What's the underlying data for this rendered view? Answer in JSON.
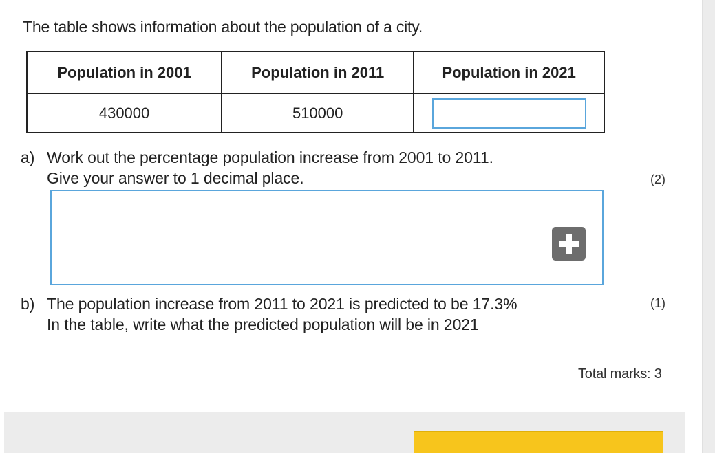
{
  "intro_text": "The table shows information about the population of a city.",
  "table": {
    "headers": [
      "Population in 2001",
      "Population in 2011",
      "Population in 2021"
    ],
    "values": [
      "430000",
      "510000"
    ],
    "input_2021_value": ""
  },
  "question_a": {
    "letter": "a)",
    "line1": "Work out the percentage population increase from 2001 to 2011.",
    "line2": "Give your answer to 1 decimal place.",
    "marks": "(2)",
    "answer_value": ""
  },
  "question_b": {
    "letter": "b)",
    "line1": "The population increase from 2011 to 2021 is predicted to be 17.3%",
    "line2": "In the table, write what the predicted population will be in 2021",
    "marks": "(1)"
  },
  "total_marks": "Total marks: 3",
  "icons": {
    "add": "plus-icon"
  },
  "colors": {
    "input_border": "#5aa6dc",
    "add_button": "#6d6d6d",
    "action_button": "#f7c51c",
    "footer": "#ececec"
  }
}
